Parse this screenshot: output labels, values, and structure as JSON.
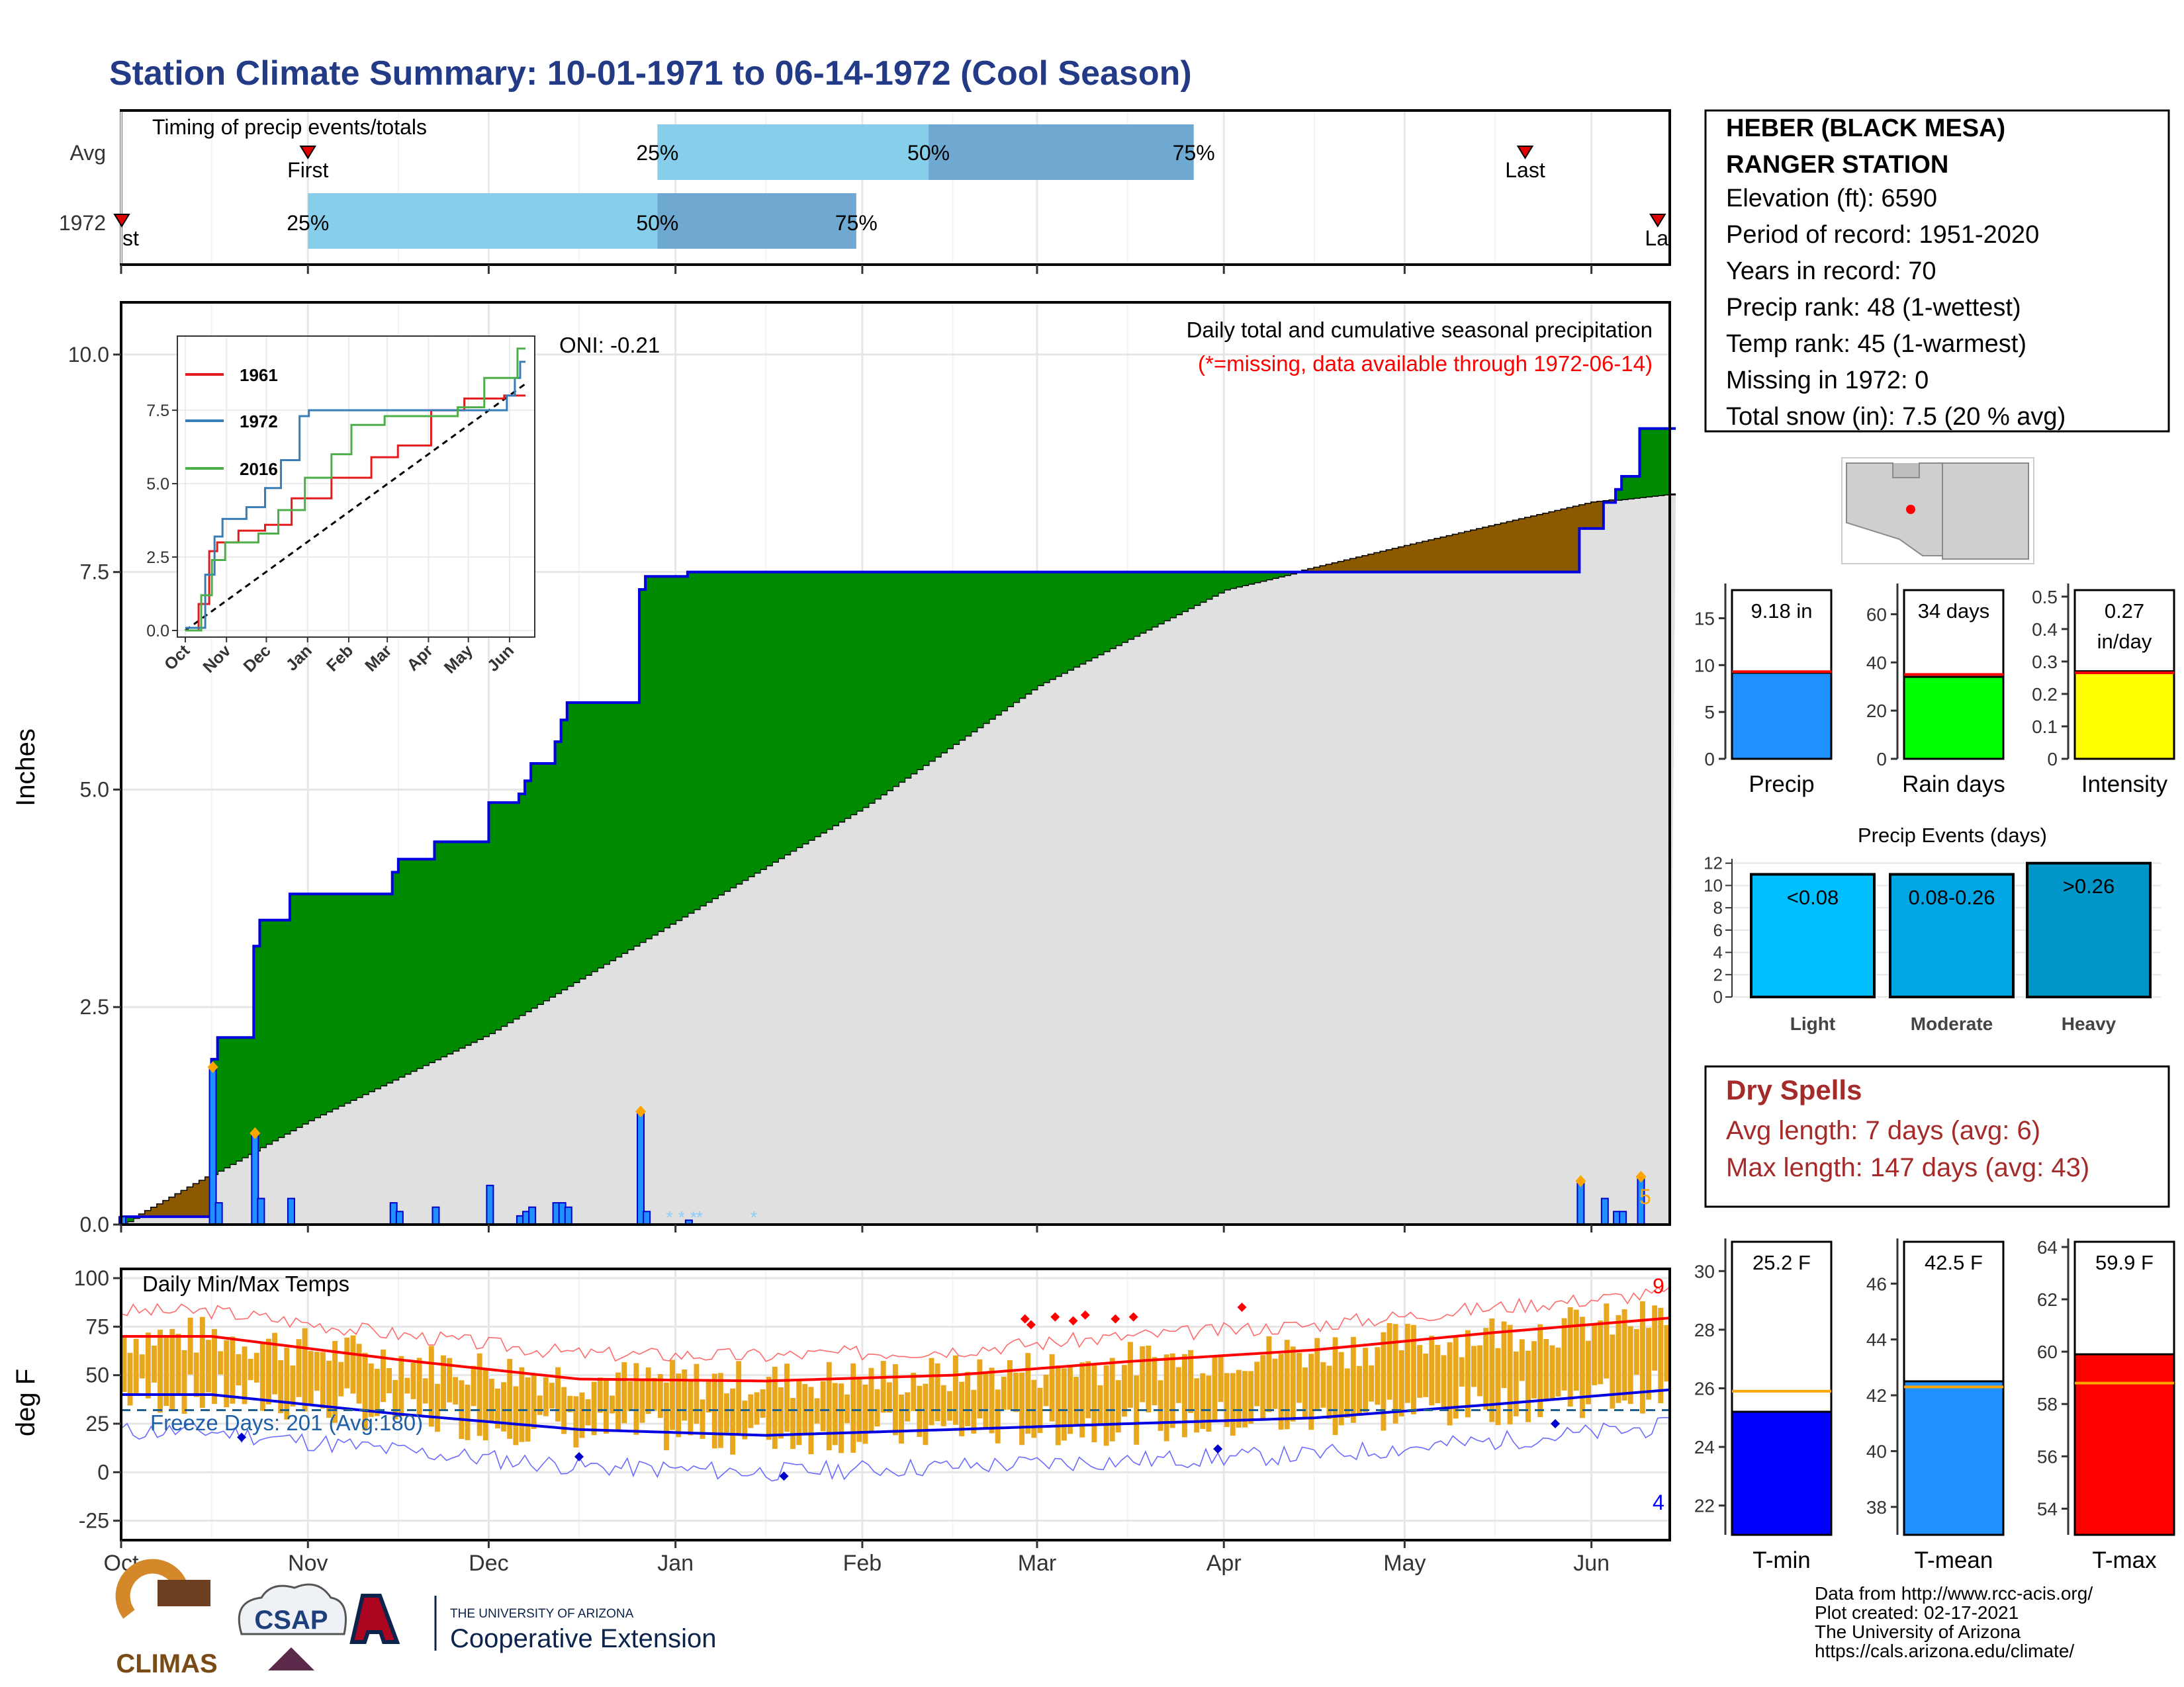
{
  "title": "Station Climate Summary: 10-01-1971 to 06-14-1972 (Cool Season)",
  "months": [
    "Oct",
    "Nov",
    "Dec",
    "Jan",
    "Feb",
    "Mar",
    "Apr",
    "May",
    "Jun"
  ],
  "timing": {
    "label": "Timing of precip events/totals",
    "rows": [
      {
        "name": "Avg",
        "first": "First",
        "last": "Last",
        "p25": "25%",
        "p50": "50%",
        "p75": "75%"
      },
      {
        "name": "1972",
        "first": "First",
        "last": "Last",
        "p25": "25%",
        "p50": "50%",
        "p75": "75%"
      }
    ],
    "avg_first_day": 31,
    "avg_last_day": 233,
    "avg_q": [
      89,
      134,
      178
    ],
    "y1972_first_day": 0,
    "y1972_last_day": 255,
    "y1972_q": [
      31,
      89,
      122
    ]
  },
  "precip": {
    "ylabel": "Inches",
    "title": "Daily total and cumulative seasonal precipitation",
    "missing_note": "(*=missing, data available through 1972-06-14)",
    "oni": "ONI: -0.21",
    "count_label": "5"
  },
  "inset": {
    "legend": [
      "1961",
      "1972",
      "2016"
    ],
    "colors": [
      "#e41a1c",
      "#377eb8",
      "#4daf4a"
    ]
  },
  "station": {
    "name1": "HEBER (BLACK MESA)",
    "name2": "RANGER STATION",
    "lines": [
      "Elevation (ft): 6590",
      "Period of record: 1951-2020",
      "Years in record: 70",
      "Precip rank: 48 (1-wettest)",
      "Temp rank: 45 (1-warmest)",
      "Missing in 1972: 0",
      "Total snow (in): 7.5 (20 % avg)"
    ]
  },
  "mini_bars": [
    {
      "label": "Precip",
      "value_text": "9.18 in",
      "value": 9.18,
      "avg": 9.3,
      "ymax": 18,
      "ticks": [
        0,
        5,
        10,
        15
      ],
      "color": "#1e90ff"
    },
    {
      "label": "Rain days",
      "value_text": "34 days",
      "value": 34,
      "avg": 35,
      "ymax": 70,
      "ticks": [
        0,
        20,
        40,
        60
      ],
      "color": "#00ff00"
    },
    {
      "label": "Intensity",
      "value_text": "0.27 in/day",
      "value": 0.27,
      "avg": 0.265,
      "ymax": 0.52,
      "ticks": [
        0.0,
        0.1,
        0.2,
        0.3,
        0.4,
        0.5
      ],
      "color": "#ffff00"
    }
  ],
  "events": {
    "title": "Precip Events (days)",
    "ticks": [
      0,
      2,
      4,
      6,
      8,
      10,
      12
    ],
    "bars": [
      {
        "label": "Light",
        "range": "<0.08",
        "value": 11,
        "color": "#00bfff"
      },
      {
        "label": "Moderate",
        "range": "0.08-0.26",
        "value": 11,
        "color": "#00a5e3"
      },
      {
        "label": "Heavy",
        "range": ">0.26",
        "value": 12,
        "color": "#0096c7"
      }
    ]
  },
  "dry_spells": {
    "title": "Dry Spells",
    "avg": "Avg length: 7 days (avg: 6)",
    "max": "Max length: 147 days (avg: 43)"
  },
  "temps": {
    "label": "Daily Min/Max Temps",
    "ylabel": "deg F",
    "freeze": "Freeze Days: 201 (Avg:180)",
    "hot_count": "9",
    "cold_count": "4",
    "yticks": [
      100,
      75,
      50,
      25,
      0,
      -25
    ]
  },
  "temp_bars": [
    {
      "label": "T-min",
      "value_text": "25.2 F",
      "value": 25.2,
      "avg": 25.9,
      "ymin": 21,
      "ymax": 31,
      "ticks": [
        22,
        24,
        26,
        28,
        30
      ],
      "color": "#0000ff"
    },
    {
      "label": "T-mean",
      "value_text": "42.5 F",
      "value": 42.5,
      "avg": 42.3,
      "ymin": 37,
      "ymax": 47.5,
      "ticks": [
        38,
        40,
        42,
        44,
        46
      ],
      "color": "#1e90ff"
    },
    {
      "label": "T-max",
      "value_text": "59.9 F",
      "value": 59.9,
      "avg": 58.8,
      "ymin": 53,
      "ymax": 64.2,
      "ticks": [
        54,
        56,
        58,
        60,
        62,
        64
      ],
      "color": "#ff0000"
    }
  ],
  "footer": {
    "lines": [
      "Data from http://www.rcc-acis.org/",
      "Plot created: 02-17-2021",
      "The University of Arizona",
      "https://cals.arizona.edu/climate/"
    ],
    "logo_climas": "CLIMAS",
    "logo_csap": "CSAP",
    "logo_ua_small": "THE UNIVERSITY OF ARIZONA",
    "logo_ua_big": "Cooperative Extension"
  },
  "chart_data": [
    {
      "type": "area",
      "title": "Daily total and cumulative seasonal precipitation",
      "ylabel": "Inches",
      "ylim": [
        0,
        10
      ],
      "x_range": [
        "1971-10-01",
        "1972-06-14"
      ],
      "cumulative_1972_steps": [
        [
          "1971-10-01",
          0.09
        ],
        [
          "1971-10-16",
          1.9
        ],
        [
          "1971-10-17",
          2.15
        ],
        [
          "1971-10-23",
          3.2
        ],
        [
          "1971-10-24",
          3.5
        ],
        [
          "1971-10-29",
          3.8
        ],
        [
          "1971-11-15",
          4.05
        ],
        [
          "1971-11-16",
          4.2
        ],
        [
          "1971-11-22",
          4.4
        ],
        [
          "1971-12-01",
          4.85
        ],
        [
          "1971-12-06",
          4.95
        ],
        [
          "1971-12-07",
          5.1
        ],
        [
          "1971-12-08",
          5.3
        ],
        [
          "1971-12-12",
          5.55
        ],
        [
          "1971-12-13",
          5.8
        ],
        [
          "1971-12-14",
          6.0
        ],
        [
          "1971-12-26",
          7.3
        ],
        [
          "1971-12-27",
          7.45
        ],
        [
          "1972-01-03",
          7.5
        ],
        [
          "1972-05-30",
          8.0
        ],
        [
          "1972-06-03",
          8.3
        ],
        [
          "1972-06-05",
          8.45
        ],
        [
          "1972-06-06",
          8.6
        ],
        [
          "1972-06-09",
          9.15
        ]
      ],
      "avg_cumulative": [
        [
          "1971-10-01",
          0.0
        ],
        [
          "1971-11-01",
          1.2
        ],
        [
          "1971-12-01",
          2.2
        ],
        [
          "1972-01-01",
          3.5
        ],
        [
          "1972-02-01",
          4.8
        ],
        [
          "1972-03-01",
          6.2
        ],
        [
          "1972-04-01",
          7.3
        ],
        [
          "1972-05-01",
          7.8
        ],
        [
          "1972-06-01",
          8.3
        ],
        [
          "1972-06-14",
          8.4
        ]
      ]
    },
    {
      "type": "line",
      "title": "Daily Min/Max Temps",
      "ylabel": "deg F",
      "ylim": [
        -30,
        100
      ],
      "avg_tmax": [
        [
          "Oct",
          70
        ],
        [
          "Nov",
          58
        ],
        [
          "Dec",
          48
        ],
        [
          "Jan",
          47
        ],
        [
          "Feb",
          50
        ],
        [
          "Mar",
          57
        ],
        [
          "Apr",
          63
        ],
        [
          "May",
          72
        ],
        [
          "Jun",
          80
        ]
      ],
      "avg_tmin": [
        [
          "Oct",
          40
        ],
        [
          "Nov",
          30
        ],
        [
          "Dec",
          22
        ],
        [
          "Jan",
          19
        ],
        [
          "Feb",
          22
        ],
        [
          "Mar",
          25
        ],
        [
          "Apr",
          28
        ],
        [
          "May",
          35
        ],
        [
          "Jun",
          43
        ]
      ],
      "freeze_line": 32
    }
  ]
}
